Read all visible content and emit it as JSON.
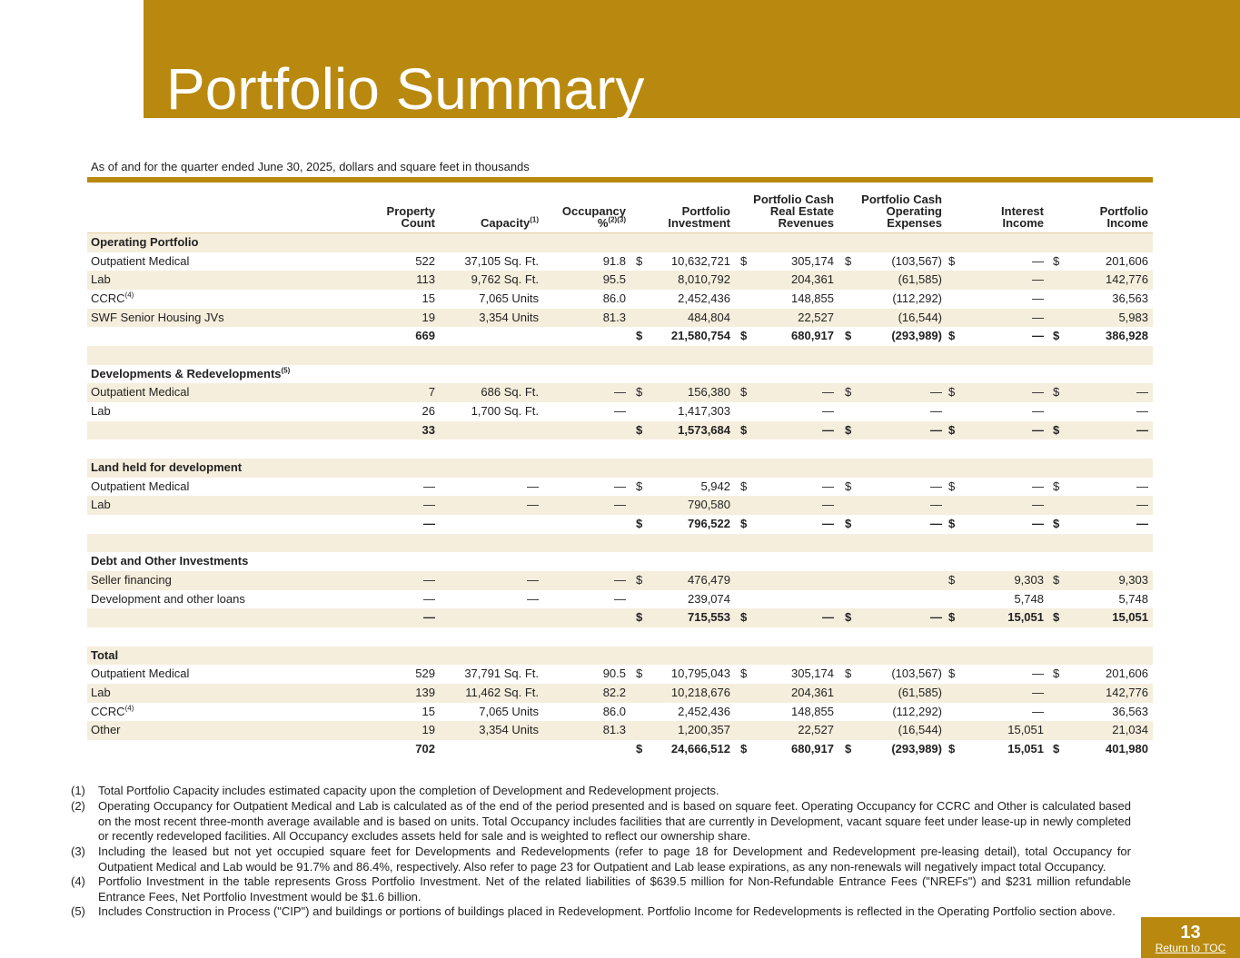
{
  "header": {
    "title": "Portfolio Summary",
    "subtitle": "As of and for the quarter ended June 30, 2025, dollars and square feet in thousands"
  },
  "table": {
    "columns": [
      {
        "lines": [
          "Property",
          "Count"
        ]
      },
      {
        "lines": [
          "Capacity"
        ],
        "sup": "(1)"
      },
      {
        "lines": [
          "Occupancy",
          "%"
        ],
        "sup": "(2)(3)"
      },
      {
        "lines": [
          "Portfolio",
          "Investment"
        ]
      },
      {
        "lines": [
          "Portfolio Cash",
          "Real Estate",
          "Revenues"
        ]
      },
      {
        "lines": [
          "Portfolio Cash",
          "Operating",
          "Expenses"
        ]
      },
      {
        "lines": [
          "Interest",
          "Income"
        ]
      },
      {
        "lines": [
          "Portfolio",
          "Income"
        ]
      }
    ],
    "sections": [
      {
        "title": "Operating Portfolio",
        "rows": [
          {
            "label": "Outpatient Medical",
            "cells": [
              "522",
              "37,105 Sq. Ft.",
              "91.8",
              [
                "$",
                "10,632,721"
              ],
              [
                "$",
                "305,174"
              ],
              [
                "$",
                "(103,567)"
              ],
              [
                "$",
                "—"
              ],
              [
                "$",
                "201,606"
              ]
            ]
          },
          {
            "label": "Lab",
            "cells": [
              "113",
              "9,762 Sq. Ft.",
              "95.5",
              "8,010,792",
              "204,361",
              "(61,585)",
              "—",
              "142,776"
            ]
          },
          {
            "label": "CCRC",
            "sup": "(4)",
            "cells": [
              "15",
              "7,065 Units",
              "86.0",
              "2,452,436",
              "148,855",
              "(112,292)",
              "—",
              "36,563"
            ]
          },
          {
            "label": "SWF Senior Housing JVs",
            "cells": [
              "19",
              "3,354 Units",
              "81.3",
              "484,804",
              "22,527",
              "(16,544)",
              "—",
              "5,983"
            ]
          }
        ],
        "total": [
          "669",
          null,
          null,
          [
            "$",
            "21,580,754"
          ],
          [
            "$",
            "680,917"
          ],
          [
            "$",
            "(293,989)"
          ],
          [
            "$",
            "—"
          ],
          [
            "$",
            "386,928"
          ]
        ]
      },
      {
        "title": "Developments & Redevelopments",
        "sup": "(5)",
        "rows": [
          {
            "label": "Outpatient Medical",
            "cells": [
              "7",
              "686 Sq. Ft.",
              "—",
              [
                "$",
                "156,380"
              ],
              [
                "$",
                "—"
              ],
              [
                "$",
                "—"
              ],
              [
                "$",
                "—"
              ],
              [
                "$",
                "—"
              ]
            ]
          },
          {
            "label": "Lab",
            "cells": [
              "26",
              "1,700 Sq. Ft.",
              "—",
              "1,417,303",
              "—",
              "—",
              "—",
              "—"
            ]
          }
        ],
        "total": [
          "33",
          null,
          null,
          [
            "$",
            "1,573,684"
          ],
          [
            "$",
            "—"
          ],
          [
            "$",
            "—"
          ],
          [
            "$",
            "—"
          ],
          [
            "$",
            "—"
          ]
        ]
      },
      {
        "title": "Land held for development",
        "rows": [
          {
            "label": "Outpatient Medical",
            "cells": [
              "—",
              "—",
              "—",
              [
                "$",
                "5,942"
              ],
              [
                "$",
                "—"
              ],
              [
                "$",
                "—"
              ],
              [
                "$",
                "—"
              ],
              [
                "$",
                "—"
              ]
            ]
          },
          {
            "label": "Lab",
            "cells": [
              "—",
              "—",
              "—",
              "790,580",
              "—",
              "—",
              "—",
              "—"
            ]
          }
        ],
        "total": [
          "—",
          null,
          null,
          [
            "$",
            "796,522"
          ],
          [
            "$",
            "—"
          ],
          [
            "$",
            "—"
          ],
          [
            "$",
            "—"
          ],
          [
            "$",
            "—"
          ]
        ]
      },
      {
        "title": "Debt and Other Investments",
        "rows": [
          {
            "label": "Seller financing",
            "cells": [
              "—",
              "—",
              "—",
              [
                "$",
                "476,479"
              ],
              null,
              null,
              [
                "$",
                "9,303"
              ],
              [
                "$",
                "9,303"
              ]
            ]
          },
          {
            "label": "Development and other loans",
            "cells": [
              "—",
              "—",
              "—",
              "239,074",
              null,
              null,
              "5,748",
              "5,748"
            ]
          }
        ],
        "total": [
          "—",
          null,
          null,
          [
            "$",
            "715,553"
          ],
          [
            "$",
            "—"
          ],
          [
            "$",
            "—"
          ],
          [
            "$",
            "15,051"
          ],
          [
            "$",
            "15,051"
          ]
        ]
      },
      {
        "title": "Total",
        "rows": [
          {
            "label": "Outpatient Medical",
            "cells": [
              "529",
              "37,791 Sq. Ft.",
              "90.5",
              [
                "$",
                "10,795,043"
              ],
              [
                "$",
                "305,174"
              ],
              [
                "$",
                "(103,567)"
              ],
              [
                "$",
                "—"
              ],
              [
                "$",
                "201,606"
              ]
            ]
          },
          {
            "label": "Lab",
            "cells": [
              "139",
              "11,462 Sq. Ft.",
              "82.2",
              "10,218,676",
              "204,361",
              "(61,585)",
              "—",
              "142,776"
            ]
          },
          {
            "label": "CCRC",
            "sup": "(4)",
            "cells": [
              "15",
              "7,065 Units",
              "86.0",
              "2,452,436",
              "148,855",
              "(112,292)",
              "—",
              "36,563"
            ]
          },
          {
            "label": "Other",
            "cells": [
              "19",
              "3,354 Units",
              "81.3",
              "1,200,357",
              "22,527",
              "(16,544)",
              "15,051",
              "21,034"
            ]
          }
        ],
        "total": [
          "702",
          null,
          null,
          [
            "$",
            "24,666,512"
          ],
          [
            "$",
            "680,917"
          ],
          [
            "$",
            "(293,989)"
          ],
          [
            "$",
            "15,051"
          ],
          [
            "$",
            "401,980"
          ]
        ]
      }
    ]
  },
  "footnotes": [
    {
      "num": "(1)",
      "text": "Total Portfolio Capacity includes estimated capacity upon the completion of Development and Redevelopment projects."
    },
    {
      "num": "(2)",
      "text": "Operating Occupancy for Outpatient Medical and Lab is calculated as of the end of the period presented and is based on square feet. Operating Occupancy for CCRC and Other is calculated based on the most recent three-month average available and is based on units. Total Occupancy includes facilities that are currently in Development, vacant square feet under lease-up in newly completed or recently redeveloped facilities. All Occupancy excludes assets held for sale and is weighted to reflect our ownership share."
    },
    {
      "num": "(3)",
      "text": "Including the leased but not yet occupied square feet for Developments and Redevelopments (refer to page 18 for Development and Redevelopment pre-leasing detail), total Occupancy for Outpatient Medical and Lab would be 91.7% and 86.4%, respectively. Also refer to page 23 for Outpatient and Lab lease expirations, as any non-renewals will negatively impact total Occupancy."
    },
    {
      "num": "(4)",
      "text": "Portfolio Investment in the table represents Gross Portfolio Investment. Net of the related liabilities of $639.5 million for Non-Refundable Entrance Fees (\"NREFs\") and $231 million refundable Entrance Fees, Net Portfolio Investment would be $1.6 billion."
    },
    {
      "num": "(5)",
      "text": "Includes Construction in Process (\"CIP\") and buildings or portions of buildings placed in Redevelopment. Portfolio Income for Redevelopments is reflected in the Operating Portfolio section above."
    }
  ],
  "footer": {
    "page_number": "13",
    "link": "Return to TOC"
  }
}
